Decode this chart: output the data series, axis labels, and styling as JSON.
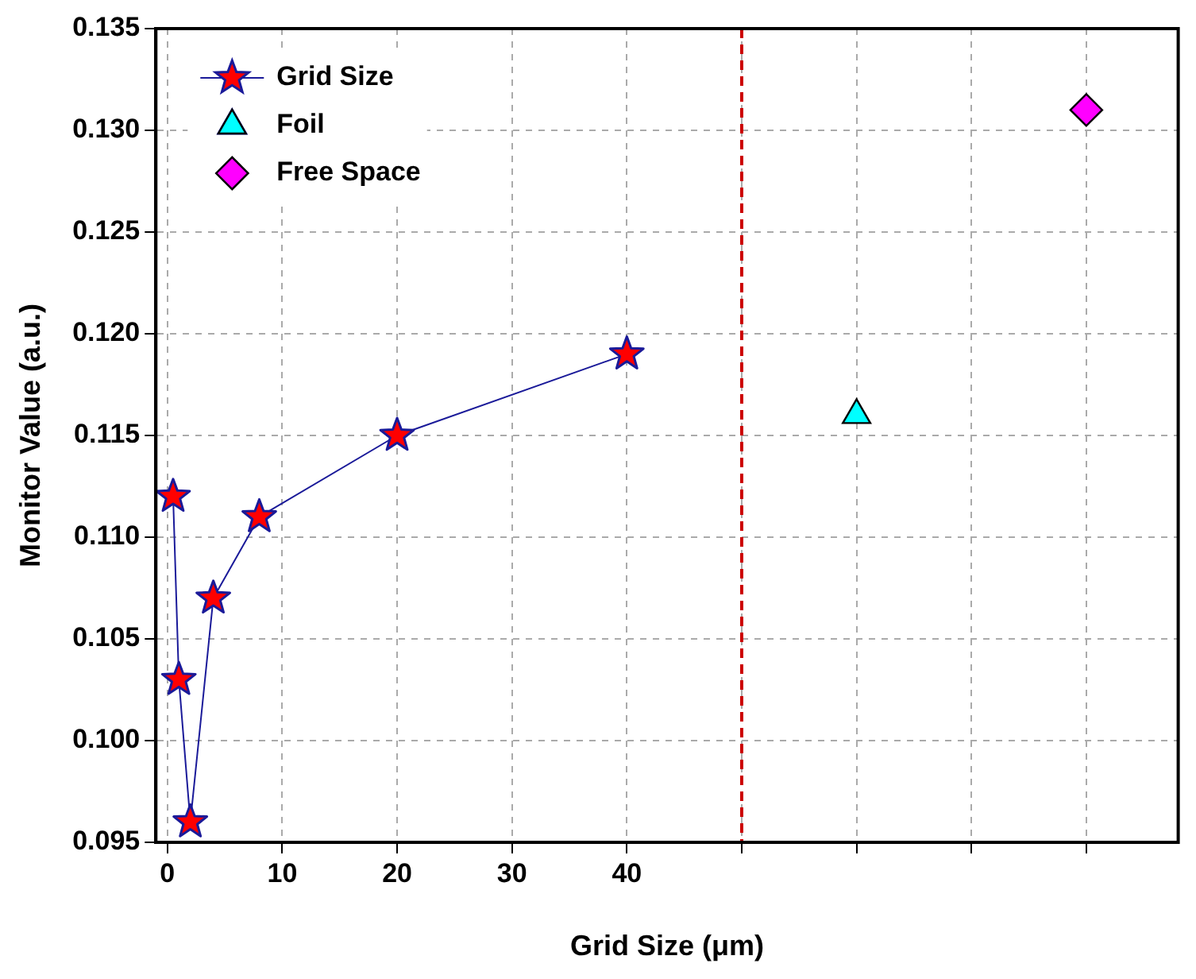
{
  "chart_data": {
    "type": "scatter",
    "xlabel": "Grid Size (μm)",
    "ylabel": "Monitor Value (a.u.)",
    "xlim": [
      -1,
      88
    ],
    "xticks": [
      0,
      10,
      20,
      30,
      40,
      {
        "value": 50,
        "label": null
      },
      {
        "value": 60,
        "label": null
      },
      {
        "value": 70,
        "label": null
      },
      {
        "value": 80,
        "label": null
      }
    ],
    "ylim": [
      0.095,
      0.135
    ],
    "yticks": [
      0.095,
      {
        "value": 0.1,
        "label": "0.100"
      },
      0.105,
      {
        "value": 0.11,
        "label": "0.110"
      },
      0.115,
      {
        "value": 0.12,
        "label": "0.120"
      },
      0.125,
      {
        "value": 0.13,
        "label": "0.130"
      },
      0.135
    ],
    "grid": true,
    "legend": "top left",
    "ref_lines": [
      {
        "axis": "x",
        "value": 50,
        "color": "#cc0000",
        "line_style": "dashed"
      }
    ],
    "series": [
      {
        "name": "Grid Size",
        "type": "line",
        "color": "#ff0000",
        "marker": "star",
        "line_style": "solid",
        "x": [
          0.5,
          1,
          2,
          4,
          8,
          20,
          40
        ],
        "values": [
          0.112,
          0.103,
          0.096,
          0.107,
          0.111,
          0.115,
          0.119
        ]
      },
      {
        "name": "Foil",
        "color": "#00ffff",
        "marker": "triangle",
        "x": [
          60
        ],
        "values": [
          0.116
        ]
      },
      {
        "name": "Free Space",
        "color": "#ff00ff",
        "marker": "diamond",
        "x": [
          80
        ],
        "values": [
          0.131
        ]
      }
    ]
  }
}
